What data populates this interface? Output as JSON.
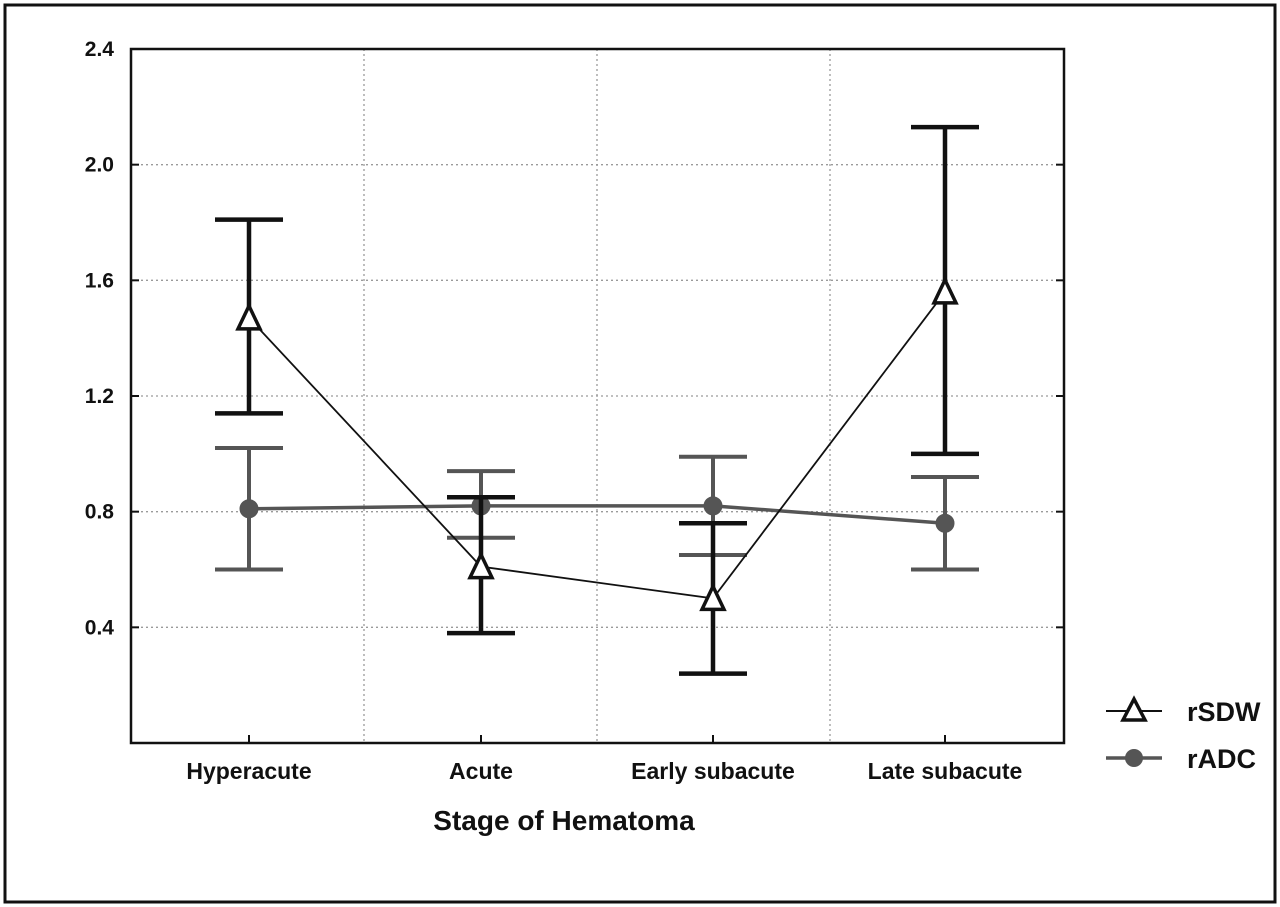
{
  "chart_data": {
    "type": "line",
    "xlabel": "Stage of Hematoma",
    "ylabel": "",
    "categories": [
      "Hyperacute",
      "Acute",
      "Early subacute",
      "Late subacute"
    ],
    "ylim": [
      0,
      2.4
    ],
    "yticks": [
      "2.4",
      "2.0",
      "1.6",
      "1.2",
      "0.8",
      "0.4"
    ],
    "ytick_values": [
      2.4,
      2.0,
      1.6,
      1.2,
      0.8,
      0.4
    ],
    "grid": true,
    "legend_position": "right",
    "series": [
      {
        "name": "rSDW",
        "marker": "triangle",
        "color": "#111111",
        "values": [
          1.47,
          0.61,
          0.5,
          1.56
        ],
        "error_low": [
          1.14,
          0.38,
          0.24,
          1.0
        ],
        "error_high": [
          1.81,
          0.85,
          0.76,
          2.13
        ]
      },
      {
        "name": "rADC",
        "marker": "circle",
        "color": "#555555",
        "values": [
          0.81,
          0.82,
          0.82,
          0.76
        ],
        "error_low": [
          0.6,
          0.71,
          0.65,
          0.6
        ],
        "error_high": [
          1.02,
          0.94,
          0.99,
          0.92
        ]
      }
    ]
  }
}
